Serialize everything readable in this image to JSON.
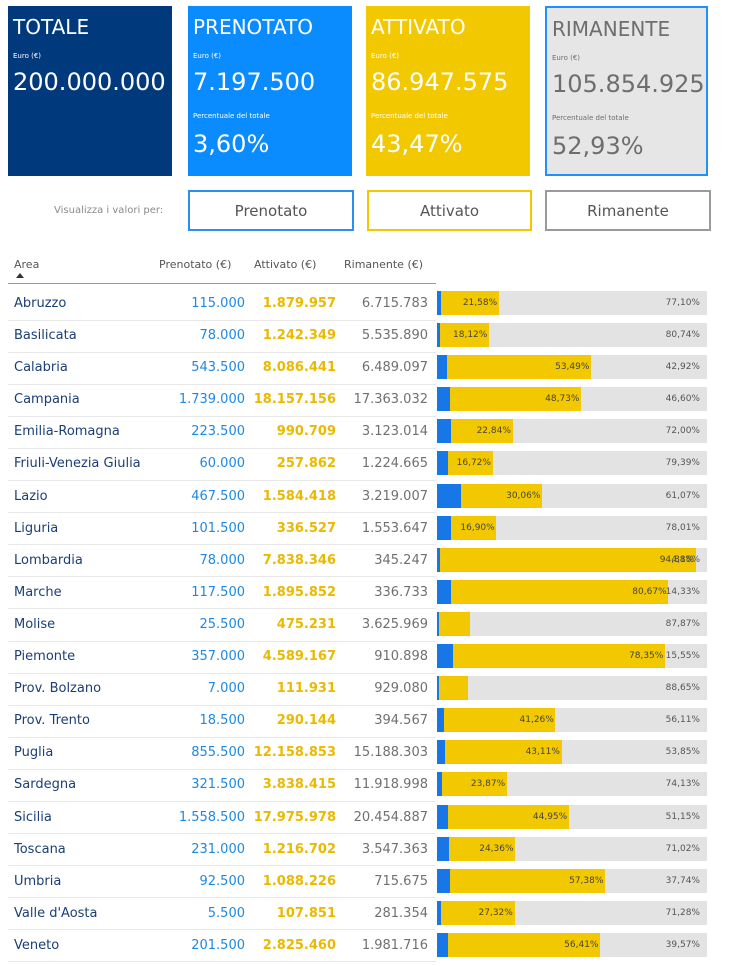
{
  "cards": {
    "totale": {
      "title": "TOTALE",
      "euro_label": "Euro (€)",
      "euro_value": "200.000.000"
    },
    "prenotato": {
      "title": "PRENOTATO",
      "euro_label": "Euro (€)",
      "euro_value": "7.197.500",
      "pct_label": "Percentuale del totale",
      "pct_value": "3,60%"
    },
    "attivato": {
      "title": "ATTIVATO",
      "euro_label": "Euro (€)",
      "euro_value": "86.947.575",
      "pct_label": "Percentuale del totale",
      "pct_value": "43,47%"
    },
    "rimanente": {
      "title": "RIMANENTE",
      "euro_label": "Euro (€)",
      "euro_value": "105.854.925",
      "pct_label": "Percentuale del totale",
      "pct_value": "52,93%"
    }
  },
  "filter": {
    "label": "Visualizza i valori per:",
    "buttons": {
      "prenotato": "Prenotato",
      "attivato": "Attivato",
      "rimanente": "Rimanente"
    }
  },
  "table": {
    "headers": {
      "area": "Area",
      "prenotato": "Prenotato (€)",
      "attivato": "Attivato (€)",
      "rimanente": "Rimanente (€)"
    },
    "rows": [
      {
        "area": "Abruzzo",
        "prenotato": "115.000",
        "attivato": "1.879.957",
        "rimanente": "6.715.783",
        "pct_prenotato": 1.32,
        "pct_attivato": "21,58%",
        "pct_rimanente": "77,10%"
      },
      {
        "area": "Basilicata",
        "prenotato": "78.000",
        "attivato": "1.242.349",
        "rimanente": "5.535.890",
        "pct_prenotato": 1.14,
        "pct_attivato": "18,12%",
        "pct_rimanente": "80,74%"
      },
      {
        "area": "Calabria",
        "prenotato": "543.500",
        "attivato": "8.086.441",
        "rimanente": "6.489.097",
        "pct_prenotato": 3.59,
        "pct_attivato": "53,49%",
        "pct_rimanente": "42,92%"
      },
      {
        "area": "Campania",
        "prenotato": "1.739.000",
        "attivato": "18.157.156",
        "rimanente": "17.363.032",
        "pct_prenotato": 4.67,
        "pct_attivato": "48,73%",
        "pct_rimanente": "46,60%"
      },
      {
        "area": "Emilia-Romagna",
        "prenotato": "223.500",
        "attivato": "990.709",
        "rimanente": "3.123.014",
        "pct_prenotato": 5.15,
        "pct_attivato": "22,84%",
        "pct_rimanente": "72,00%"
      },
      {
        "area": "Friuli-Venezia Giulia",
        "prenotato": "60.000",
        "attivato": "257.862",
        "rimanente": "1.224.665",
        "pct_prenotato": 3.89,
        "pct_attivato": "16,72%",
        "pct_rimanente": "79,39%"
      },
      {
        "area": "Lazio",
        "prenotato": "467.500",
        "attivato": "1.584.418",
        "rimanente": "3.219.007",
        "pct_prenotato": 8.87,
        "pct_attivato": "30,06%",
        "pct_rimanente": "61,07%"
      },
      {
        "area": "Liguria",
        "prenotato": "101.500",
        "attivato": "336.527",
        "rimanente": "1.553.647",
        "pct_prenotato": 5.1,
        "pct_attivato": "16,90%",
        "pct_rimanente": "78,01%"
      },
      {
        "area": "Lombardia",
        "prenotato": "78.000",
        "attivato": "7.838.346",
        "rimanente": "345.247",
        "pct_prenotato": 0.94,
        "pct_attivato": "94,88%",
        "pct_rimanente": "4,18%"
      },
      {
        "area": "Marche",
        "prenotato": "117.500",
        "attivato": "1.895.852",
        "rimanente": "336.733",
        "pct_prenotato": 5.0,
        "pct_attivato": "80,67%",
        "pct_rimanente": "14,33%"
      },
      {
        "area": "Molise",
        "prenotato": "25.500",
        "attivato": "475.231",
        "rimanente": "3.625.969",
        "pct_prenotato": 0.62,
        "pct_attivato": "11,51%",
        "pct_rimanente": "87,87%"
      },
      {
        "area": "Piemonte",
        "prenotato": "357.000",
        "attivato": "4.589.167",
        "rimanente": "910.898",
        "pct_prenotato": 6.1,
        "pct_attivato": "78,35%",
        "pct_rimanente": "15,55%"
      },
      {
        "area": "Prov. Bolzano",
        "prenotato": "7.000",
        "attivato": "111.931",
        "rimanente": "929.080",
        "pct_prenotato": 0.67,
        "pct_attivato": "10,68%",
        "pct_rimanente": "88,65%"
      },
      {
        "area": "Prov. Trento",
        "prenotato": "18.500",
        "attivato": "290.144",
        "rimanente": "394.567",
        "pct_prenotato": 2.63,
        "pct_attivato": "41,26%",
        "pct_rimanente": "56,11%"
      },
      {
        "area": "Puglia",
        "prenotato": "855.500",
        "attivato": "12.158.853",
        "rimanente": "15.188.303",
        "pct_prenotato": 3.03,
        "pct_attivato": "43,11%",
        "pct_rimanente": "53,85%"
      },
      {
        "area": "Sardegna",
        "prenotato": "321.500",
        "attivato": "3.838.415",
        "rimanente": "11.918.998",
        "pct_prenotato": 2.0,
        "pct_attivato": "23,87%",
        "pct_rimanente": "74,13%"
      },
      {
        "area": "Sicilia",
        "prenotato": "1.558.500",
        "attivato": "17.975.978",
        "rimanente": "20.454.887",
        "pct_prenotato": 3.9,
        "pct_attivato": "44,95%",
        "pct_rimanente": "51,15%"
      },
      {
        "area": "Toscana",
        "prenotato": "231.000",
        "attivato": "1.216.702",
        "rimanente": "3.547.363",
        "pct_prenotato": 4.62,
        "pct_attivato": "24,36%",
        "pct_rimanente": "71,02%"
      },
      {
        "area": "Umbria",
        "prenotato": "92.500",
        "attivato": "1.088.226",
        "rimanente": "715.675",
        "pct_prenotato": 4.88,
        "pct_attivato": "57,38%",
        "pct_rimanente": "37,74%"
      },
      {
        "area": "Valle d'Aosta",
        "prenotato": "5.500",
        "attivato": "107.851",
        "rimanente": "281.354",
        "pct_prenotato": 1.39,
        "pct_attivato": "27,32%",
        "pct_rimanente": "71,28%"
      },
      {
        "area": "Veneto",
        "prenotato": "201.500",
        "attivato": "2.825.460",
        "rimanente": "1.981.716",
        "pct_prenotato": 4.02,
        "pct_attivato": "56,41%",
        "pct_rimanente": "39,57%"
      }
    ]
  },
  "colors": {
    "totale": "#003a7d",
    "prenotato": "#0a8cff",
    "attivato": "#f2c800",
    "rimanente": "#e6e6e6",
    "selected_border": "#1e90ff"
  }
}
